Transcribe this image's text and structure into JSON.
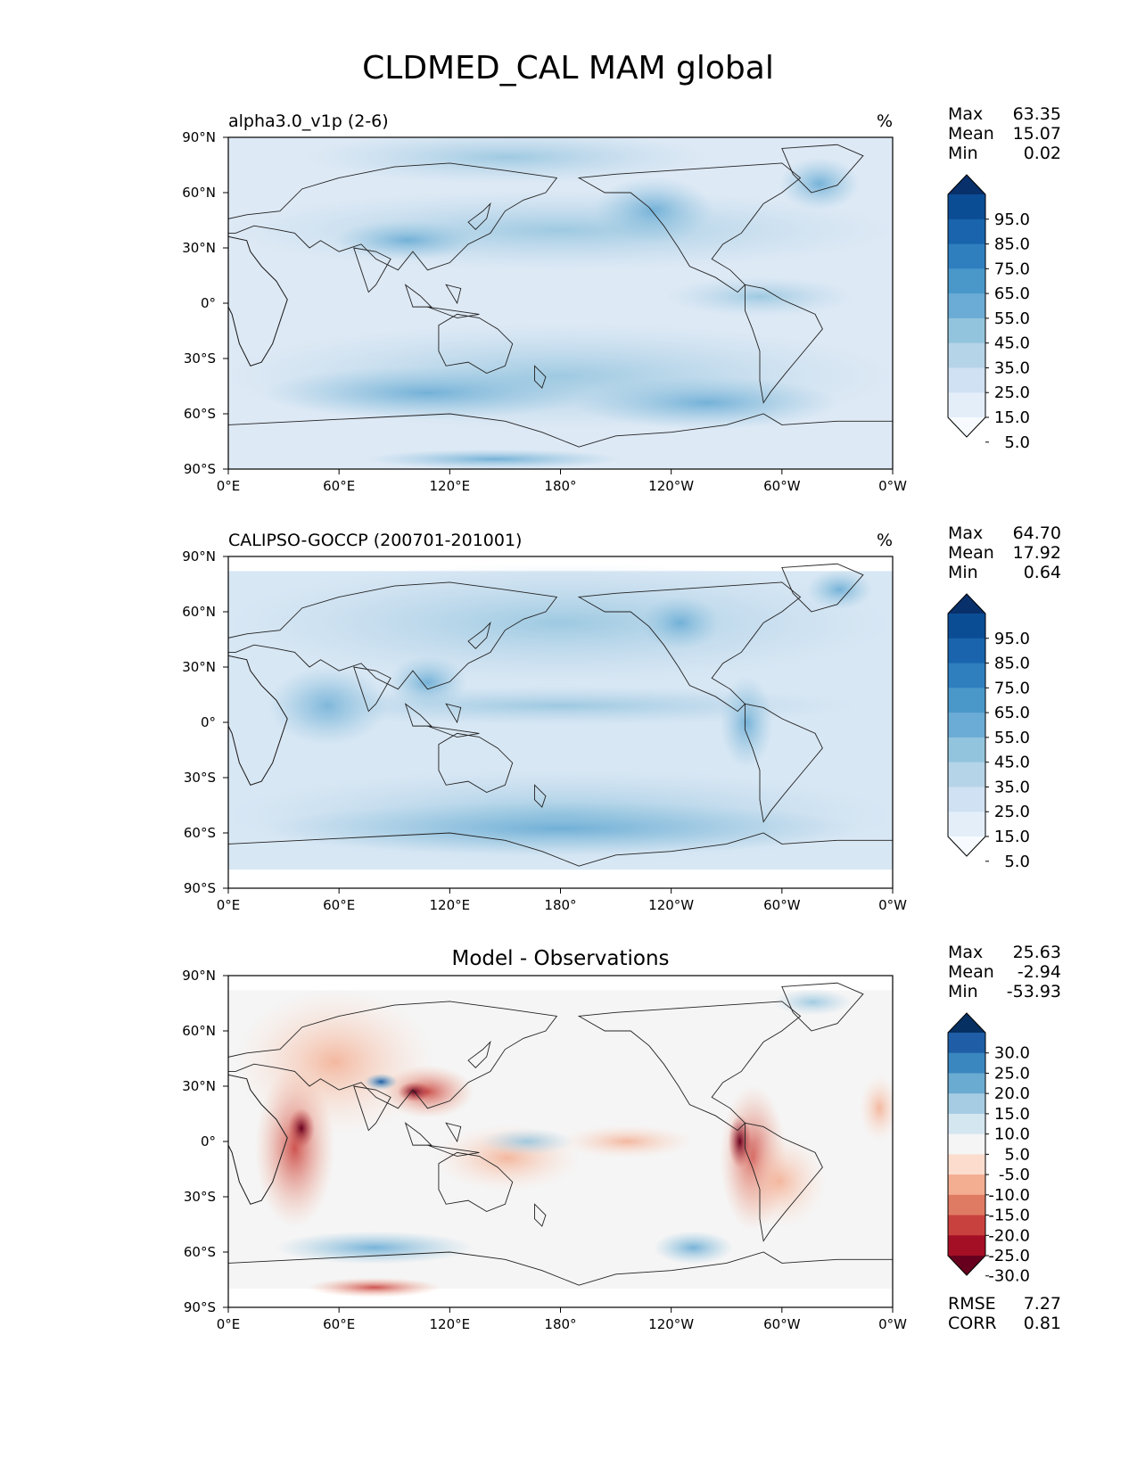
{
  "figure": {
    "title": "CLDMED_CAL MAM global"
  },
  "axes": {
    "lat_labels": [
      "90°N",
      "60°N",
      "30°N",
      "0°",
      "30°S",
      "60°S",
      "90°S"
    ],
    "lon_labels": [
      "0°E",
      "60°E",
      "120°E",
      "180°",
      "120°W",
      "60°W",
      "0°W"
    ]
  },
  "panels": [
    {
      "id": "model",
      "title_left": "alpha3.0_v1p (2-6)",
      "title_right": "%",
      "stats": [
        {
          "label": "Max",
          "value": "63.35"
        },
        {
          "label": "Mean",
          "value": "15.07"
        },
        {
          "label": "Min",
          "value": "0.02"
        }
      ],
      "colorbar": {
        "labels": [
          "95.0",
          "85.0",
          "75.0",
          "65.0",
          "55.0",
          "45.0",
          "35.0",
          "25.0",
          "15.0",
          "5.0"
        ],
        "colors_top_to_bottom": [
          "#08306b",
          "#0b4d94",
          "#1964ad",
          "#2f7fbf",
          "#4a98c9",
          "#6aacd5",
          "#93c4de",
          "#b6d4e8",
          "#cfe1f2",
          "#e3eef9",
          "#f7fbff"
        ]
      }
    },
    {
      "id": "obs",
      "title_left": "CALIPSO-GOCCP (200701-201001)",
      "title_right": "%",
      "stats": [
        {
          "label": "Max",
          "value": "64.70"
        },
        {
          "label": "Mean",
          "value": "17.92"
        },
        {
          "label": "Min",
          "value": "0.64"
        }
      ],
      "colorbar": {
        "labels": [
          "95.0",
          "85.0",
          "75.0",
          "65.0",
          "55.0",
          "45.0",
          "35.0",
          "25.0",
          "15.0",
          "5.0"
        ],
        "colors_top_to_bottom": [
          "#08306b",
          "#0b4d94",
          "#1964ad",
          "#2f7fbf",
          "#4a98c9",
          "#6aacd5",
          "#93c4de",
          "#b6d4e8",
          "#cfe1f2",
          "#e3eef9",
          "#f7fbff"
        ]
      }
    },
    {
      "id": "diff",
      "title_center": "Model - Observations",
      "stats": [
        {
          "label": "Max",
          "value": "25.63"
        },
        {
          "label": "Mean",
          "value": "-2.94"
        },
        {
          "label": "Min",
          "value": "-53.93"
        }
      ],
      "extra_stats": [
        {
          "label": "RMSE",
          "value": "7.27"
        },
        {
          "label": "CORR",
          "value": "0.81"
        }
      ],
      "colorbar": {
        "labels": [
          "30.0",
          "25.0",
          "20.0",
          "15.0",
          "10.0",
          "5.0",
          "-5.0",
          "-10.0",
          "-15.0",
          "-20.0",
          "-25.0",
          "-30.0"
        ],
        "colors_top_to_bottom": [
          "#053061",
          "#1f5ea6",
          "#3a87bf",
          "#6aabd1",
          "#a5cce2",
          "#d4e6f0",
          "#f5f5f5",
          "#fbdccd",
          "#f3ad90",
          "#e07b63",
          "#c9413e",
          "#a50f26",
          "#67001f"
        ]
      }
    }
  ]
}
